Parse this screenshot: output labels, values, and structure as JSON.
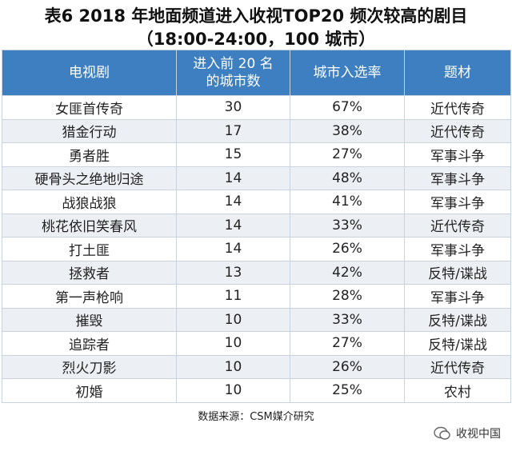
{
  "header": {
    "title": "表6 2018 年地面频道进入收视TOP20 频次较高的剧目",
    "subtitle": "（18:00-24:00，100 城市）"
  },
  "table": {
    "columns": [
      [
        "电视剧"
      ],
      [
        "进入前 20 名",
        "的城市数"
      ],
      [
        "城市入选率"
      ],
      [
        "题材"
      ]
    ],
    "rows": [
      [
        "女匪首传奇",
        "30",
        "67%",
        "近代传奇"
      ],
      [
        "猎金行动",
        "17",
        "38%",
        "近代传奇"
      ],
      [
        "勇者胜",
        "15",
        "27%",
        "军事斗争"
      ],
      [
        "硬骨头之绝地归途",
        "14",
        "48%",
        "军事斗争"
      ],
      [
        "战狼战狼",
        "14",
        "41%",
        "军事斗争"
      ],
      [
        "桃花依旧笑春风",
        "14",
        "33%",
        "近代传奇"
      ],
      [
        "打土匪",
        "14",
        "26%",
        "军事斗争"
      ],
      [
        "拯救者",
        "13",
        "42%",
        "反特/谍战"
      ],
      [
        "第一声枪响",
        "11",
        "28%",
        "军事斗争"
      ],
      [
        "摧毁",
        "10",
        "33%",
        "反特/谍战"
      ],
      [
        "追踪者",
        "10",
        "27%",
        "反特/谍战"
      ],
      [
        "烈火刀影",
        "10",
        "26%",
        "近代传奇"
      ],
      [
        "初婚",
        "10",
        "25%",
        "农村"
      ]
    ]
  },
  "footer": {
    "source": "数据来源：CSM媒介研究",
    "watermark": "收视中国"
  }
}
